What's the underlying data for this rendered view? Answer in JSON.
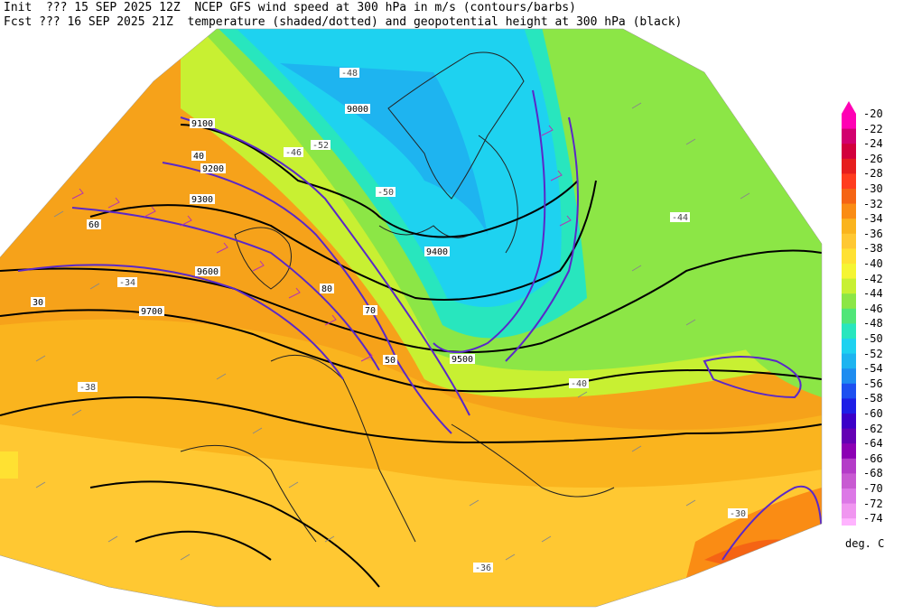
{
  "header": {
    "line1": "Init  ??? 15 SEP 2025 12Z  NCEP GFS wind speed at 300 hPa in m/s (contours/barbs)",
    "line2": "Fcst ??? 16 SEP 2025 21Z  temperature (shaded/dotted) and geopotential height at 300 hPa (black)"
  },
  "colorbar": {
    "units": "deg. C",
    "levels": [
      {
        "label": "-20",
        "color": "#ff00b4"
      },
      {
        "label": "-22",
        "color": "#d2006e"
      },
      {
        "label": "-24",
        "color": "#d2003c"
      },
      {
        "label": "-26",
        "color": "#e61e1e"
      },
      {
        "label": "-28",
        "color": "#ff3c1e"
      },
      {
        "label": "-30",
        "color": "#f56414"
      },
      {
        "label": "-32",
        "color": "#fa8c14"
      },
      {
        "label": "-34",
        "color": "#fab41e"
      },
      {
        "label": "-36",
        "color": "#ffc832"
      },
      {
        "label": "-38",
        "color": "#ffe132"
      },
      {
        "label": "-40",
        "color": "#f5f532"
      },
      {
        "label": "-42",
        "color": "#c8f032"
      },
      {
        "label": "-44",
        "color": "#8ce646"
      },
      {
        "label": "-46",
        "color": "#50e678"
      },
      {
        "label": "-48",
        "color": "#28e6be"
      },
      {
        "label": "-50",
        "color": "#1ed2f0"
      },
      {
        "label": "-52",
        "color": "#1eb4f0"
      },
      {
        "label": "-54",
        "color": "#1e8cf0"
      },
      {
        "label": "-56",
        "color": "#1e50f0"
      },
      {
        "label": "-58",
        "color": "#1e1ee6"
      },
      {
        "label": "-60",
        "color": "#3c00c8"
      },
      {
        "label": "-62",
        "color": "#6400b4"
      },
      {
        "label": "-64",
        "color": "#8c00b4"
      },
      {
        "label": "-66",
        "color": "#b43cc8"
      },
      {
        "label": "-68",
        "color": "#c85ad2"
      },
      {
        "label": "-70",
        "color": "#dc78e6"
      },
      {
        "label": "-72",
        "color": "#f096f0"
      },
      {
        "label": "-74",
        "color": "#ffb4ff"
      }
    ]
  },
  "map_labels": {
    "heights": [
      "9000",
      "9100",
      "9200",
      "9300",
      "9400",
      "9500",
      "9600",
      "9700"
    ],
    "speeds": [
      "30",
      "40",
      "50",
      "60",
      "70",
      "80"
    ],
    "temps": [
      "-30",
      "-34",
      "-36",
      "-38",
      "-40",
      "-44",
      "-46",
      "-48",
      "-50",
      "-52"
    ]
  }
}
